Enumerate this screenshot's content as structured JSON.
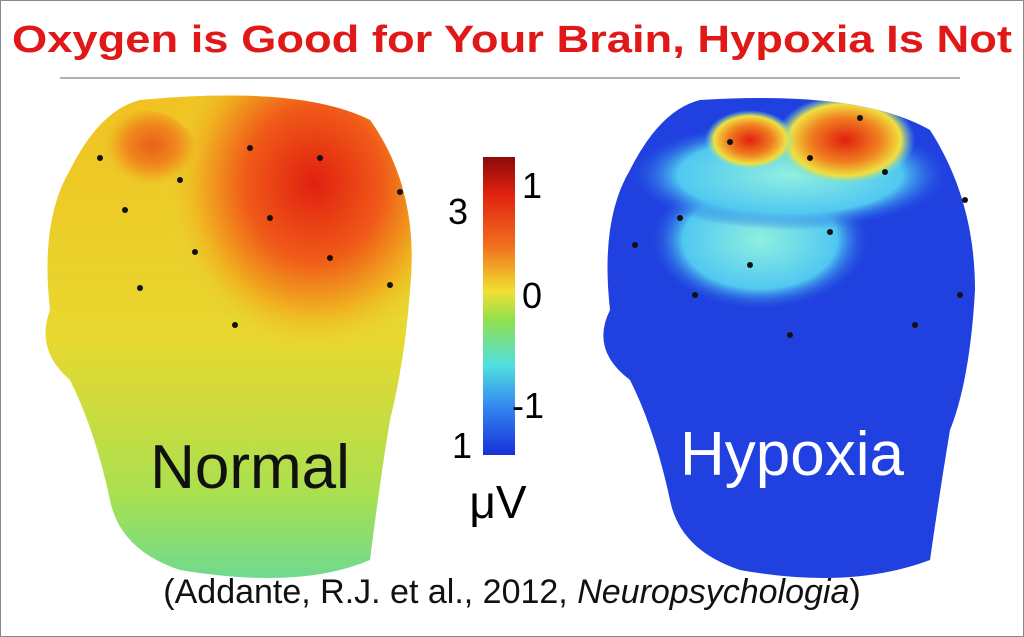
{
  "header": {
    "title": "Oxygen is Good for Your Brain, Hypoxia Is Not"
  },
  "figures": [
    {
      "label": "Normal"
    },
    {
      "label": "Hypoxia"
    }
  ],
  "colorbar": {
    "right_labels": [
      "1",
      "0",
      "-1"
    ],
    "left_labels": [
      "3",
      "1"
    ],
    "unit": "μV"
  },
  "citation": {
    "before": "(Addante, R.J. et al., 2012, ",
    "journal": "Neuropsychologia",
    "after": ")"
  }
}
